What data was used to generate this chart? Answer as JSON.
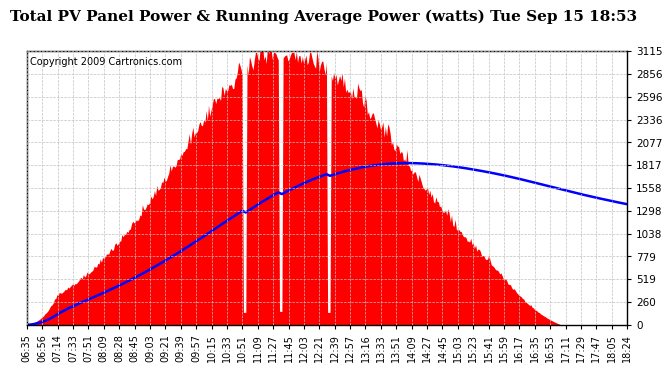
{
  "title": "Total PV Panel Power & Running Average Power (watts) Tue Sep 15 18:53",
  "copyright": "Copyright 2009 Cartronics.com",
  "yticks": [
    0.0,
    259.6,
    519.2,
    778.8,
    1038.4,
    1297.9,
    1557.5,
    1817.1,
    2076.7,
    2336.3,
    2595.9,
    2855.5,
    3115.1
  ],
  "ymax": 3115.1,
  "ymin": 0.0,
  "fill_color": "#FF0000",
  "line_color": "#0000FF",
  "background_color": "#FFFFFF",
  "grid_color": "#C0C0C0",
  "title_fontsize": 11,
  "copyright_fontsize": 7,
  "tick_fontsize": 7.5,
  "xtick_labels": [
    "06:35",
    "06:56",
    "07:14",
    "07:33",
    "07:51",
    "08:09",
    "08:28",
    "08:45",
    "09:03",
    "09:21",
    "09:39",
    "09:57",
    "10:15",
    "10:33",
    "10:51",
    "11:09",
    "11:27",
    "11:45",
    "12:03",
    "12:21",
    "12:39",
    "12:57",
    "13:16",
    "13:33",
    "13:51",
    "14:09",
    "14:27",
    "14:45",
    "15:03",
    "15:23",
    "15:41",
    "15:59",
    "16:17",
    "16:35",
    "16:53",
    "17:11",
    "17:29",
    "17:47",
    "18:05",
    "18:24"
  ]
}
